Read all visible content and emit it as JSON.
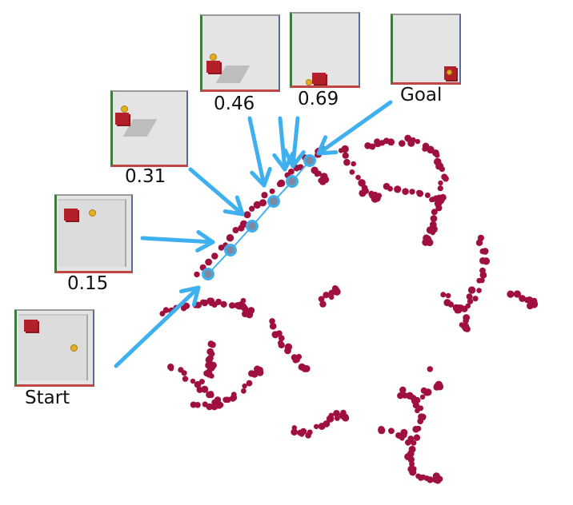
{
  "labels": {
    "start": "Start",
    "p15": "0.15",
    "p31": "0.31",
    "p46": "0.46",
    "p69": "0.69",
    "goal": "Goal"
  },
  "colors": {
    "cluster": "#a0103f",
    "path": "#3fb0ef",
    "waypoint_fill": "#7a8aa0",
    "cube": "#b3202a",
    "ball": "#e0b020"
  },
  "frames": [
    {
      "name": "frame-start",
      "label_key": "start"
    },
    {
      "name": "frame-0-15",
      "label_key": "p15"
    },
    {
      "name": "frame-0-31",
      "label_key": "p31"
    },
    {
      "name": "frame-0-46",
      "label_key": "p46"
    },
    {
      "name": "frame-0-69",
      "label_key": "p69"
    },
    {
      "name": "frame-goal",
      "label_key": "goal"
    }
  ]
}
